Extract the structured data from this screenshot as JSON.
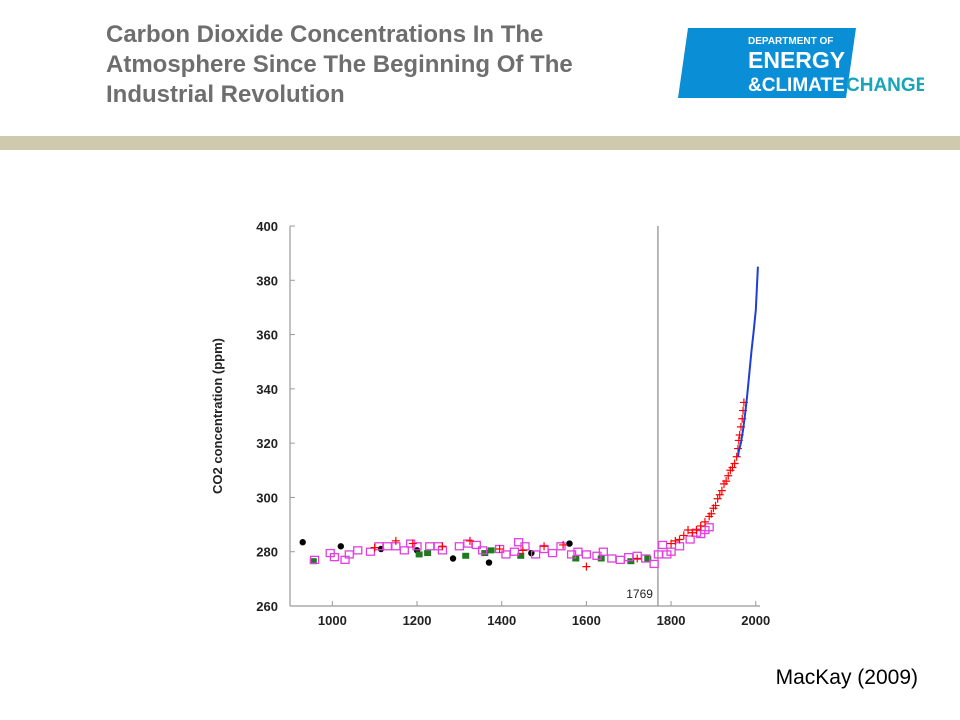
{
  "slide": {
    "title_lines": [
      "Carbon Dioxide Concentrations In The",
      "Atmosphere Since The Beginning Of The",
      "Industrial Revolution"
    ],
    "credit": "MacKay (2009)"
  },
  "logo": {
    "line1": "DEPARTMENT OF",
    "line2": "ENERGY",
    "line3": "&CLIMATE",
    "line4": "CHANGE",
    "colors": {
      "blue": "#0a8fd6",
      "teal": "#17a6b9",
      "text": "#ffffff"
    }
  },
  "colors": {
    "title": "#6e6e6e",
    "band": "#cfc9ad"
  },
  "chart_data": {
    "type": "scatter",
    "title": "",
    "xlabel": "",
    "ylabel": "CO2 concentration (ppm)",
    "xlim": [
      900,
      2010
    ],
    "ylim": [
      260,
      400
    ],
    "xticks": [
      1000,
      1200,
      1400,
      1600,
      1800,
      2000
    ],
    "yticks": [
      260,
      280,
      300,
      320,
      340,
      360,
      380,
      400
    ],
    "grid": false,
    "annotations": [
      {
        "text": "1769",
        "x": 1769,
        "kind": "vertical-line"
      }
    ],
    "series": [
      {
        "marker": "filled-circle",
        "color": "#000000",
        "points": [
          [
            930,
            283.5
          ],
          [
            1020,
            282
          ],
          [
            1115,
            281
          ],
          [
            1200,
            280.5
          ],
          [
            1285,
            277.5
          ],
          [
            1370,
            276
          ],
          [
            1470,
            279.5
          ],
          [
            1560,
            283
          ]
        ]
      },
      {
        "marker": "filled-square",
        "color": "#1f7a1f",
        "points": [
          [
            955,
            276.5
          ],
          [
            1205,
            279
          ],
          [
            1225,
            279.5
          ],
          [
            1315,
            278.5
          ],
          [
            1360,
            279.5
          ],
          [
            1375,
            280.5
          ],
          [
            1445,
            278.5
          ],
          [
            1575,
            277.5
          ],
          [
            1635,
            277.5
          ],
          [
            1705,
            276.5
          ],
          [
            1745,
            277.5
          ]
        ]
      },
      {
        "marker": "open-square",
        "color": "#e040e0",
        "points": [
          [
            958,
            277
          ],
          [
            995,
            279.5
          ],
          [
            1005,
            278
          ],
          [
            1030,
            277
          ],
          [
            1040,
            279
          ],
          [
            1060,
            280.5
          ],
          [
            1090,
            280
          ],
          [
            1110,
            282
          ],
          [
            1130,
            282
          ],
          [
            1150,
            282
          ],
          [
            1170,
            280.5
          ],
          [
            1185,
            283
          ],
          [
            1200,
            282
          ],
          [
            1230,
            282
          ],
          [
            1250,
            282
          ],
          [
            1260,
            280.5
          ],
          [
            1300,
            282
          ],
          [
            1320,
            283
          ],
          [
            1340,
            282.5
          ],
          [
            1355,
            280.5
          ],
          [
            1395,
            281
          ],
          [
            1410,
            279
          ],
          [
            1430,
            280
          ],
          [
            1440,
            283.5
          ],
          [
            1455,
            282
          ],
          [
            1480,
            279
          ],
          [
            1500,
            281
          ],
          [
            1520,
            279.5
          ],
          [
            1540,
            282
          ],
          [
            1565,
            279
          ],
          [
            1580,
            280
          ],
          [
            1600,
            279
          ],
          [
            1625,
            278.5
          ],
          [
            1640,
            280
          ],
          [
            1660,
            277.5
          ],
          [
            1680,
            277
          ],
          [
            1700,
            278
          ],
          [
            1720,
            278.5
          ],
          [
            1740,
            277.5
          ],
          [
            1760,
            275.5
          ],
          [
            1770,
            279
          ],
          [
            1780,
            282.5
          ],
          [
            1790,
            279
          ],
          [
            1800,
            280
          ],
          [
            1820,
            282
          ],
          [
            1845,
            284.5
          ],
          [
            1860,
            287
          ],
          [
            1870,
            286.5
          ],
          [
            1880,
            288
          ],
          [
            1890,
            289
          ]
        ]
      },
      {
        "marker": "plus",
        "color": "#ff0000",
        "points": [
          [
            1100,
            281.5
          ],
          [
            1150,
            284
          ],
          [
            1190,
            283
          ],
          [
            1260,
            282
          ],
          [
            1325,
            284
          ],
          [
            1395,
            281
          ],
          [
            1450,
            280.5
          ],
          [
            1500,
            282
          ],
          [
            1545,
            282.5
          ],
          [
            1600,
            274.5
          ],
          [
            1720,
            277.5
          ],
          [
            1800,
            283
          ],
          [
            1810,
            284
          ],
          [
            1820,
            284.5
          ],
          [
            1830,
            286
          ],
          [
            1840,
            288
          ],
          [
            1850,
            287
          ],
          [
            1860,
            288
          ],
          [
            1870,
            289.5
          ],
          [
            1880,
            291
          ],
          [
            1890,
            293
          ],
          [
            1895,
            294
          ],
          [
            1900,
            296
          ],
          [
            1905,
            297
          ],
          [
            1910,
            299.5
          ],
          [
            1915,
            301
          ],
          [
            1920,
            302.5
          ],
          [
            1925,
            305
          ],
          [
            1930,
            306
          ],
          [
            1935,
            308
          ],
          [
            1940,
            310
          ],
          [
            1945,
            311
          ],
          [
            1950,
            312.5
          ],
          [
            1955,
            315
          ],
          [
            1958,
            318
          ],
          [
            1960,
            321
          ],
          [
            1962,
            323
          ],
          [
            1965,
            326
          ],
          [
            1968,
            329
          ],
          [
            1970,
            332
          ],
          [
            1972,
            335
          ]
        ]
      }
    ],
    "line_series": {
      "color": "#1c3fd8",
      "x": [
        1958,
        1960,
        1965,
        1970,
        1975,
        1980,
        1985,
        1990,
        1995,
        2000,
        2005
      ],
      "y": [
        315,
        317,
        320,
        325,
        331,
        338,
        346,
        354,
        361,
        369,
        385
      ]
    }
  }
}
